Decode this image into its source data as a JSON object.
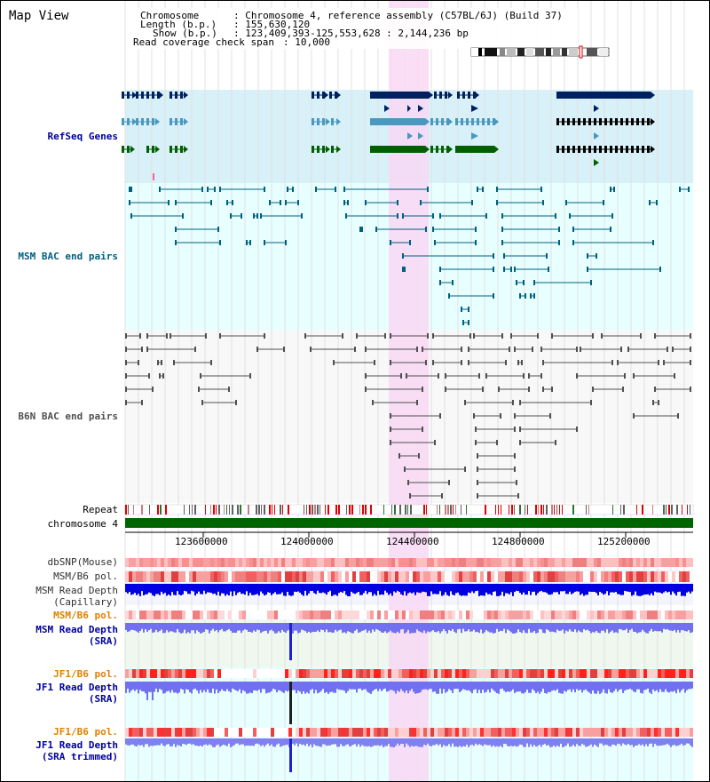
{
  "title": "Map View",
  "info": {
    "chromosome_label": "Chromosome",
    "chromosome_value": ": Chromosome 4, reference assembly (C57BL/6J) (Build 37)",
    "length_label": "Length (b.p.)",
    "length_value": ": 155,630,120",
    "show_label": "Show (b.p.)",
    "show_value": ": 123,409,393-125,553,628 : 2,144,236 bp",
    "span_label": "Read coverage check span",
    "span_value": ": 10,000"
  },
  "tracks": {
    "refseq": "RefSeq Genes",
    "msm_bac": "MSM BAC end pairs",
    "b6n_bac": "B6N BAC end pairs",
    "repeat": "Repeat",
    "chromosome": "chromosome 4",
    "dbsnp": "dbSNP(Mouse)",
    "msm_b6_pol_1": "MSM/B6 pol.",
    "msm_read_depth_cap_1": "MSM Read Depth",
    "msm_read_depth_cap_2": "(Capillary)",
    "msm_b6_pol_2": "MSM/B6 pol.",
    "msm_read_depth_sra_1": "MSM Read Depth",
    "msm_read_depth_sra_2": "(SRA)",
    "jf1_b6_pol_1": "JF1/B6 pol.",
    "jf1_read_depth_sra_1": "JF1 Read Depth",
    "jf1_read_depth_sra_2": "(SRA)",
    "jf1_b6_pol_2": "JF1/B6 pol.",
    "jf1_read_depth_trim_1": "JF1 Read Depth",
    "jf1_read_depth_trim_2": "(SRA trimmed)"
  },
  "axis": {
    "ticks": [
      "123600000",
      "124000000",
      "124400000",
      "124800000",
      "125200000"
    ]
  },
  "colors": {
    "refseq_bg": "#d8f0f8",
    "msm_bac_bg": "#e8ffff",
    "highlight": "#f8d8f4",
    "gene_dark": "#002060",
    "gene_mid": "#4898c0",
    "gene_green": "#006000",
    "msm_bac_line": "#006080",
    "b6n_bac_line": "#505050",
    "chromosome_bar": "#006400",
    "depth_capillary": "#0000e0",
    "depth_sra": "#7070f0",
    "depth_trim": "#8080f0",
    "pol_label_orange": "#e08000",
    "label_blue": "#0000a0",
    "label_teal": "#006080"
  }
}
